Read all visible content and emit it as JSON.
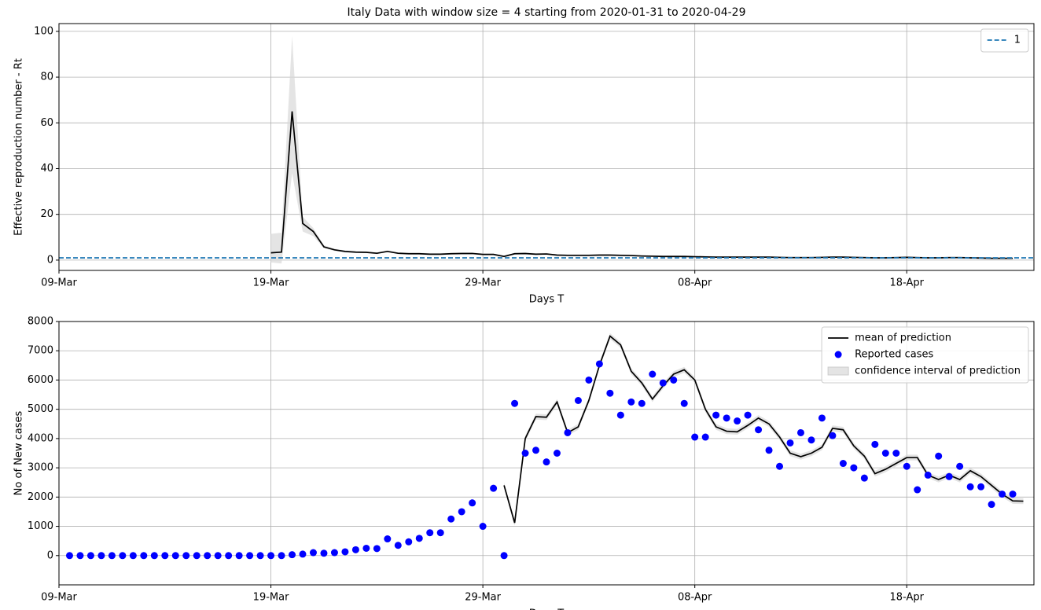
{
  "chart_data": [
    {
      "type": "line",
      "title": "Italy Data with window size = 4 starting from 2020-01-31 to  2020-04-29",
      "xlabel": "Days T",
      "ylabel": "Effective reproduction number - Rt",
      "x": [
        0,
        1,
        2,
        3,
        4,
        5,
        6,
        7,
        8,
        9,
        10,
        11,
        12,
        13,
        14,
        15,
        16,
        17,
        18,
        19,
        20,
        21,
        22,
        23,
        24,
        25,
        26,
        27,
        28,
        29,
        30,
        31,
        32,
        33,
        34,
        35,
        36,
        37,
        38,
        39,
        40,
        41,
        42,
        43,
        44,
        45,
        46,
        47,
        48,
        49,
        50,
        51,
        52,
        53,
        54,
        55,
        56,
        57,
        58,
        59,
        60,
        61,
        62,
        63,
        64,
        65,
        66,
        67,
        68,
        69,
        70,
        71,
        72,
        73,
        74,
        75,
        76,
        77,
        78,
        79,
        80,
        81,
        82,
        83,
        84,
        85,
        86,
        87,
        88,
        89
      ],
      "values": [
        null,
        null,
        null,
        null,
        null,
        null,
        null,
        null,
        null,
        null,
        null,
        null,
        null,
        null,
        null,
        null,
        null,
        null,
        null,
        3.2,
        3.5,
        65,
        16,
        12.5,
        5.8,
        4.5,
        3.8,
        3.5,
        3.4,
        3.0,
        3.8,
        3.0,
        2.8,
        2.8,
        2.6,
        2.6,
        2.8,
        2.9,
        2.9,
        2.5,
        2.5,
        1.6,
        2.8,
        2.9,
        2.6,
        2.7,
        2.2,
        2.1,
        2.1,
        2.1,
        2.2,
        2.2,
        2.1,
        2.0,
        1.8,
        1.7,
        1.6,
        1.6,
        1.6,
        1.5,
        1.4,
        1.3,
        1.3,
        1.3,
        1.3,
        1.3,
        1.3,
        1.2,
        1.1,
        1.1,
        1.1,
        1.2,
        1.3,
        1.3,
        1.2,
        1.1,
        1.0,
        1.0,
        1.1,
        1.2,
        1.1,
        1.0,
        1.0,
        1.1,
        1.1,
        1.0,
        0.9,
        0.8,
        0.8,
        0.8
      ],
      "ci_upper": [
        null,
        null,
        null,
        null,
        null,
        null,
        null,
        null,
        null,
        null,
        null,
        null,
        null,
        null,
        null,
        null,
        null,
        null,
        null,
        11.5,
        12,
        98,
        19,
        14,
        6.5,
        5,
        4.2,
        3.9,
        3.8,
        3.4,
        4.2,
        3.4,
        3.2,
        3.2,
        3.0,
        3.0,
        3.2,
        3.3,
        3.3,
        2.9,
        2.9,
        2.0,
        3.2,
        3.3,
        3.0,
        3.1,
        2.6,
        2.5,
        2.5,
        2.5,
        2.6,
        2.6,
        2.5,
        2.4,
        2.2,
        2.1,
        2.0,
        2.0,
        2.0,
        1.9,
        1.8,
        1.7,
        1.7,
        1.7,
        1.7,
        1.7,
        1.7,
        1.6,
        1.5,
        1.5,
        1.5,
        1.6,
        1.7,
        1.7,
        1.6,
        1.5,
        1.4,
        1.4,
        1.5,
        1.6,
        1.5,
        1.4,
        1.4,
        1.5,
        1.5,
        1.4,
        1.3,
        1.2,
        1.2,
        1.2
      ],
      "ci_lower": [
        null,
        null,
        null,
        null,
        null,
        null,
        null,
        null,
        null,
        null,
        null,
        null,
        null,
        null,
        null,
        null,
        null,
        null,
        null,
        -1,
        -1.5,
        38,
        12.5,
        10.5,
        5.2,
        4.0,
        3.4,
        3.1,
        3.0,
        2.6,
        3.4,
        2.6,
        2.4,
        2.4,
        2.2,
        2.2,
        2.4,
        2.5,
        2.5,
        2.1,
        2.1,
        1.2,
        2.4,
        2.5,
        2.2,
        2.3,
        1.8,
        1.7,
        1.7,
        1.7,
        1.8,
        1.8,
        1.7,
        1.6,
        1.4,
        1.3,
        1.2,
        1.2,
        1.2,
        1.1,
        1.0,
        0.9,
        0.9,
        0.9,
        0.9,
        0.9,
        0.9,
        0.8,
        0.7,
        0.7,
        0.7,
        0.8,
        0.9,
        0.9,
        0.8,
        0.7,
        0.6,
        0.6,
        0.7,
        0.8,
        0.7,
        0.6,
        0.6,
        0.7,
        0.7,
        0.6,
        0.5,
        0.4,
        0.4,
        0.4
      ],
      "color": "#000000",
      "ci_color": "#d9d9d9",
      "hline": {
        "name": "1",
        "value": 1,
        "color": "#1f77b4"
      },
      "xlim": [
        -1,
        91
      ],
      "xticks": [
        {
          "value": -1,
          "label": "09-Mar"
        },
        {
          "value": 19,
          "label": "19-Mar"
        },
        {
          "value": 39,
          "label": "29-Mar"
        },
        {
          "value": 59,
          "label": "08-Apr"
        },
        {
          "value": 79,
          "label": "18-Apr"
        }
      ],
      "ylim": [
        -4.5,
        103.4
      ],
      "yticks": [
        0,
        20,
        40,
        60,
        80,
        100
      ],
      "grid": true,
      "legend": "upper-right"
    },
    {
      "type": "line",
      "xlabel": "Days T",
      "ylabel": "No of New cases",
      "x": [
        0,
        1,
        2,
        3,
        4,
        5,
        6,
        7,
        8,
        9,
        10,
        11,
        12,
        13,
        14,
        15,
        16,
        17,
        18,
        19,
        20,
        21,
        22,
        23,
        24,
        25,
        26,
        27,
        28,
        29,
        30,
        31,
        32,
        33,
        34,
        35,
        36,
        37,
        38,
        39,
        40,
        41,
        42,
        43,
        44,
        45,
        46,
        47,
        48,
        49,
        50,
        51,
        52,
        53,
        54,
        55,
        56,
        57,
        58,
        59,
        60,
        61,
        62,
        63,
        64,
        65,
        66,
        67,
        68,
        69,
        70,
        71,
        72,
        73,
        74,
        75,
        76,
        77,
        78,
        79,
        80,
        81,
        82,
        83,
        84,
        85,
        86,
        87,
        88,
        89,
        90
      ],
      "series": [
        {
          "name": "mean of prediction",
          "kind": "line",
          "color": "#000000",
          "values": [
            null,
            null,
            null,
            null,
            null,
            null,
            null,
            null,
            null,
            null,
            null,
            null,
            null,
            null,
            null,
            null,
            null,
            null,
            null,
            null,
            null,
            null,
            null,
            null,
            null,
            null,
            null,
            null,
            null,
            null,
            null,
            null,
            null,
            null,
            null,
            null,
            null,
            null,
            null,
            null,
            null,
            2400,
            1120,
            4000,
            4750,
            4730,
            5250,
            4200,
            4400,
            5300,
            6500,
            7500,
            7200,
            6300,
            5900,
            5350,
            5800,
            6200,
            6350,
            6000,
            5000,
            4400,
            4250,
            4230,
            4450,
            4700,
            4500,
            4050,
            3500,
            3380,
            3500,
            3700,
            4350,
            4300,
            3750,
            3400,
            2800,
            2950,
            3150,
            3350,
            3350,
            2750,
            2600,
            2750,
            2600,
            2900,
            2700,
            2400,
            2100,
            1870,
            1860
          ]
        },
        {
          "name": "Reported cases",
          "kind": "scatter",
          "color": "#0000ff",
          "values": [
            0,
            0,
            0,
            0,
            0,
            0,
            0,
            0,
            0,
            0,
            0,
            0,
            0,
            0,
            0,
            0,
            0,
            0,
            0,
            0,
            0,
            30,
            50,
            100,
            80,
            100,
            130,
            200,
            250,
            240,
            570,
            350,
            470,
            590,
            780,
            780,
            1250,
            1500,
            1800,
            1000,
            2300,
            0,
            5200,
            3500,
            3600,
            3200,
            3500,
            4200,
            5300,
            6000,
            6550,
            5550,
            4800,
            5250,
            5200,
            6200,
            5900,
            6000,
            5200,
            4050,
            4050,
            4800,
            4700,
            4600,
            4800,
            4300,
            3600,
            3050,
            3850,
            4200,
            3950,
            4700,
            4100,
            3150,
            3000,
            2650,
            3800,
            3500,
            3500,
            3050,
            2250,
            2750,
            3400,
            2700,
            3050,
            2350,
            2350,
            1750,
            2100,
            2100,
            null
          ]
        },
        {
          "name": "confidence interval of prediction",
          "kind": "band",
          "color": "#d9d9d9",
          "upper": [
            null,
            null,
            null,
            null,
            null,
            null,
            null,
            null,
            null,
            null,
            null,
            null,
            null,
            null,
            null,
            null,
            null,
            null,
            null,
            null,
            null,
            null,
            null,
            null,
            null,
            null,
            null,
            null,
            null,
            null,
            null,
            null,
            null,
            null,
            null,
            null,
            null,
            null,
            null,
            null,
            null,
            2500,
            1220,
            4100,
            4850,
            4830,
            5350,
            4300,
            4500,
            5400,
            6600,
            7600,
            7300,
            6400,
            6000,
            5450,
            5900,
            6300,
            6450,
            6100,
            5100,
            4500,
            4350,
            4330,
            4550,
            4800,
            4600,
            4150,
            3600,
            3480,
            3600,
            3800,
            4450,
            4400,
            3850,
            3500,
            2900,
            3050,
            3250,
            3450,
            3450,
            2850,
            2700,
            2850,
            2700,
            3000,
            2800,
            2500,
            2200,
            1970,
            1960
          ],
          "lower": [
            null,
            null,
            null,
            null,
            null,
            null,
            null,
            null,
            null,
            null,
            null,
            null,
            null,
            null,
            null,
            null,
            null,
            null,
            null,
            null,
            null,
            null,
            null,
            null,
            null,
            null,
            null,
            null,
            null,
            null,
            null,
            null,
            null,
            null,
            null,
            null,
            null,
            null,
            null,
            null,
            null,
            2300,
            1020,
            3900,
            4650,
            4630,
            5150,
            4100,
            4300,
            5200,
            6400,
            7400,
            7100,
            6200,
            5800,
            5250,
            5700,
            6100,
            6250,
            5900,
            4900,
            4300,
            4150,
            4130,
            4350,
            4600,
            4400,
            3950,
            3400,
            3280,
            3400,
            3600,
            4250,
            4200,
            3650,
            3300,
            2700,
            2850,
            3050,
            3250,
            3250,
            2650,
            2500,
            2650,
            2500,
            2800,
            2600,
            2300,
            2000,
            1770,
            1760
          ]
        }
      ],
      "xlim": [
        -1,
        91
      ],
      "xticks": [
        {
          "value": -1,
          "label": "09-Mar"
        },
        {
          "value": 19,
          "label": "19-Mar"
        },
        {
          "value": 39,
          "label": "29-Mar"
        },
        {
          "value": 59,
          "label": "08-Apr"
        },
        {
          "value": 79,
          "label": "18-Apr"
        }
      ],
      "ylim": [
        -1000,
        8000
      ],
      "yticks": [
        0,
        1000,
        2000,
        3000,
        4000,
        5000,
        6000,
        7000,
        8000
      ],
      "grid": true,
      "legend": "upper-right"
    }
  ]
}
